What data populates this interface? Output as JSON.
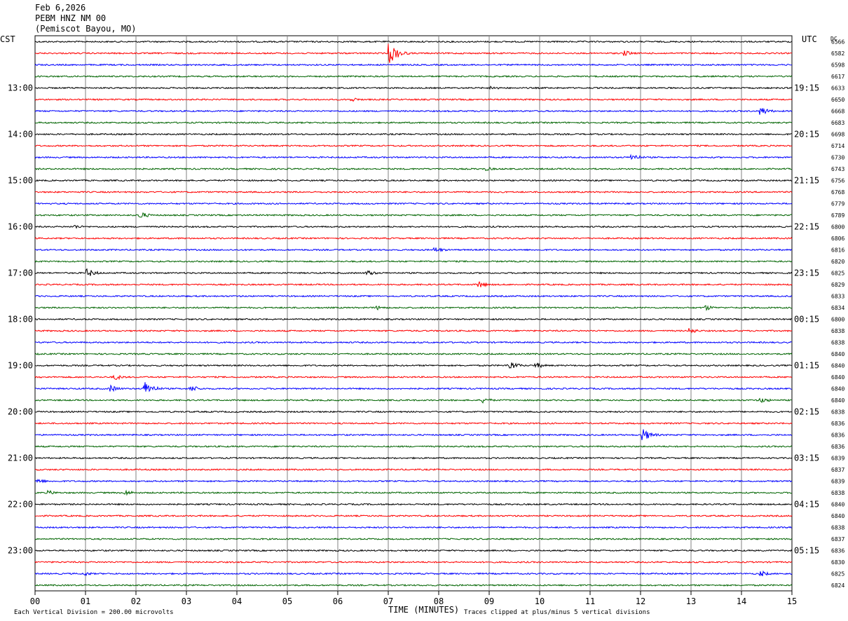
{
  "header": {
    "date": "Feb 6,2026",
    "station": "PEBM HNZ NM 00",
    "location": "(Pemiscot Bayou, MO)"
  },
  "left_axis_label": "CST",
  "right_axis_label": "UTC",
  "dc_label": "DC",
  "footer": {
    "xlabel": "TIME (MINUTES)",
    "scale_note": "Each Vertical Division =  200.00 microvolts",
    "clip_note": "Traces clipped at plus/minus 5 vertical divisions"
  },
  "colors": {
    "trace_cycle": [
      "#000000",
      "#ff0000",
      "#0000ff",
      "#006400"
    ],
    "grid": "#808080"
  },
  "chart_data": {
    "type": "line",
    "title": "PEBM HNZ NM 00",
    "xlabel": "TIME (MINUTES)",
    "x_ticks": [
      "00",
      "01",
      "02",
      "03",
      "04",
      "05",
      "06",
      "07",
      "08",
      "09",
      "10",
      "11",
      "12",
      "13",
      "14",
      "15"
    ],
    "xlim": [
      0,
      15
    ],
    "y_ticks_left": [
      "13:00",
      "14:00",
      "15:00",
      "16:00",
      "17:00",
      "18:00",
      "19:00",
      "20:00",
      "21:00",
      "22:00",
      "23:00"
    ],
    "y_ticks_right": [
      "19:15",
      "20:15",
      "21:15",
      "22:15",
      "23:15",
      "00:15",
      "01:15",
      "02:15",
      "03:15",
      "04:15",
      "05:15"
    ],
    "traces_per_hour": 4,
    "dc_offsets": [
      "6566",
      "6582",
      "6598",
      "6617",
      "6633",
      "6650",
      "6668",
      "6683",
      "6698",
      "6714",
      "6730",
      "6743",
      "6756",
      "6768",
      "6779",
      "6789",
      "6800",
      "6806",
      "6816",
      "6820",
      "6825",
      "6829",
      "6833",
      "6834",
      "6800",
      "6838",
      "6838",
      "6840",
      "6840",
      "6840",
      "6840",
      "6840",
      "6838",
      "6836",
      "6836",
      "6836",
      "6839",
      "6837",
      "6839",
      "6838",
      "6840",
      "6840",
      "6838",
      "6837",
      "6836",
      "6830",
      "6825",
      "6824"
    ],
    "events": [
      {
        "trace": 1,
        "minute": 7.05,
        "amplitude": 14
      },
      {
        "trace": 1,
        "minute": 11.7,
        "amplitude": 4
      },
      {
        "trace": 4,
        "minute": 9.05,
        "amplitude": 3
      },
      {
        "trace": 5,
        "minute": 6.3,
        "amplitude": 3
      },
      {
        "trace": 6,
        "minute": 14.4,
        "amplitude": 6
      },
      {
        "trace": 10,
        "minute": 11.85,
        "amplitude": 5
      },
      {
        "trace": 11,
        "minute": 8.95,
        "amplitude": 3
      },
      {
        "trace": 15,
        "minute": 2.1,
        "amplitude": 5
      },
      {
        "trace": 16,
        "minute": 0.8,
        "amplitude": 3
      },
      {
        "trace": 18,
        "minute": 7.95,
        "amplitude": 4
      },
      {
        "trace": 20,
        "minute": 1.05,
        "amplitude": 6
      },
      {
        "trace": 20,
        "minute": 6.6,
        "amplitude": 4
      },
      {
        "trace": 21,
        "minute": 8.8,
        "amplitude": 5
      },
      {
        "trace": 23,
        "minute": 6.8,
        "amplitude": 3
      },
      {
        "trace": 23,
        "minute": 13.3,
        "amplitude": 4
      },
      {
        "trace": 25,
        "minute": 13.0,
        "amplitude": 4
      },
      {
        "trace": 28,
        "minute": 9.4,
        "amplitude": 7
      },
      {
        "trace": 28,
        "minute": 9.95,
        "amplitude": 4
      },
      {
        "trace": 29,
        "minute": 1.6,
        "amplitude": 4
      },
      {
        "trace": 30,
        "minute": 2.2,
        "amplitude": 10
      },
      {
        "trace": 30,
        "minute": 1.5,
        "amplitude": 5
      },
      {
        "trace": 30,
        "minute": 3.1,
        "amplitude": 5
      },
      {
        "trace": 31,
        "minute": 8.9,
        "amplitude": 4
      },
      {
        "trace": 31,
        "minute": 14.4,
        "amplitude": 4
      },
      {
        "trace": 34,
        "minute": 12.05,
        "amplitude": 9
      },
      {
        "trace": 38,
        "minute": 0.05,
        "amplitude": 4
      },
      {
        "trace": 39,
        "minute": 1.8,
        "amplitude": 4
      },
      {
        "trace": 39,
        "minute": 0.3,
        "amplitude": 3
      },
      {
        "trace": 46,
        "minute": 14.4,
        "amplitude": 4
      },
      {
        "trace": 46,
        "minute": 1.0,
        "amplitude": 3
      }
    ]
  }
}
